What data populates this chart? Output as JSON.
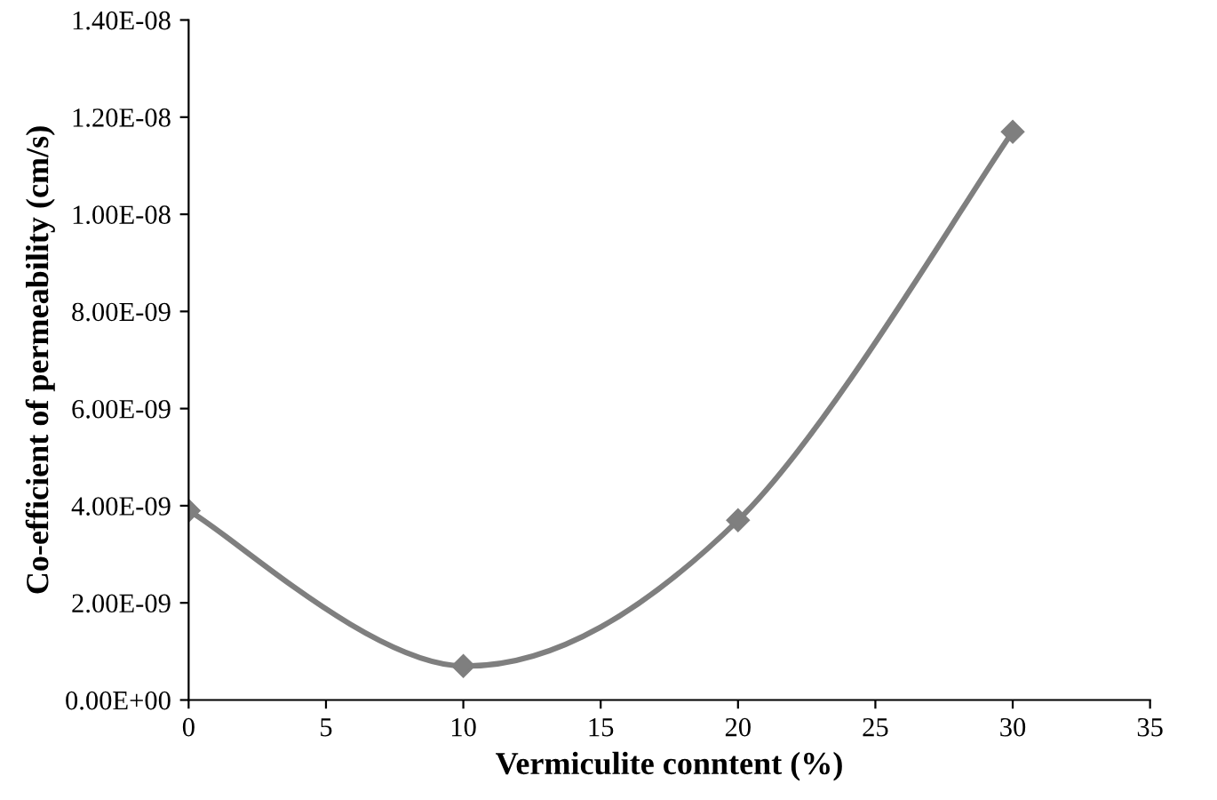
{
  "chart_data": {
    "type": "line",
    "xlabel": "Vermiculite conntent (%)",
    "ylabel": "Co-efficient of permeability (cm/s)",
    "x": [
      0,
      10,
      20,
      30
    ],
    "series": [
      {
        "color": "#7f7f7f",
        "values": [
          3.9e-09,
          7e-10,
          3.7e-09,
          1.17e-08
        ]
      }
    ],
    "xlim": [
      0,
      35
    ],
    "xticks": [
      0,
      5,
      10,
      15,
      20,
      25,
      30,
      35
    ],
    "ylim": [
      0,
      1.4e-08
    ],
    "yticks": [
      {
        "value": 0,
        "label": "0.00E+00"
      },
      {
        "value": 2e-09,
        "label": "2.00E-09"
      },
      {
        "value": 4e-09,
        "label": "4.00E-09"
      },
      {
        "value": 6e-09,
        "label": "6.00E-09"
      },
      {
        "value": 8e-09,
        "label": "8.00E-09"
      },
      {
        "value": 1e-08,
        "label": "1.00E-08"
      },
      {
        "value": 1.2e-08,
        "label": "1.20E-08"
      },
      {
        "value": 1.4e-08,
        "label": "1.40E-08"
      }
    ],
    "grid": false,
    "legend": false,
    "marker": "diamond",
    "line_style": "solid"
  }
}
